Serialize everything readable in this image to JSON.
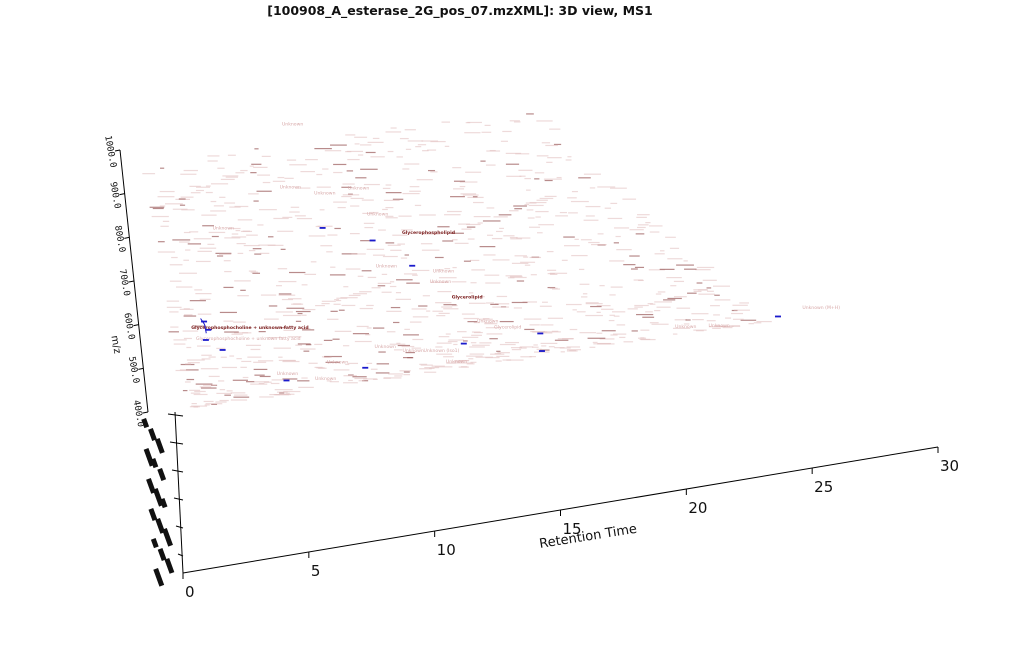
{
  "window": {
    "title": "[100908_A_esterase_2G_pos_07.mzXML]: 3D view, MS1"
  },
  "chart_data": {
    "type": "scatter",
    "projection": "3d",
    "title": "[100908_A_esterase_2G_pos_07.mzXML]: 3D view, MS1",
    "xlabel": "Retention Time",
    "ylabel": "m/z",
    "xlim": [
      0,
      30
    ],
    "ylim": [
      400,
      1000
    ],
    "x_ticks": [
      "0",
      "5",
      "10",
      "15",
      "20",
      "25",
      "30"
    ],
    "y_ticks": [
      "400.0",
      "500.0",
      "600.0",
      "700.0",
      "800.0",
      "900.0",
      "1000.0"
    ],
    "grid": false,
    "colors": {
      "annotation": "#d7a8a8",
      "annotation_highlight": "#7a1c1c",
      "selected_points": "#1a1acc",
      "axis": "#000000"
    },
    "features": [
      {
        "x": 2.0,
        "y": 575,
        "label": "Glycerophosphocholine + unknown fatty acid",
        "highlight": true
      },
      {
        "x": 2.1,
        "y": 548,
        "label": "Glycerophosphocholine + unknown fatty acid",
        "highlight": false
      },
      {
        "x": 12.9,
        "y": 717,
        "label": "Glycerophospholipid",
        "highlight": true
      },
      {
        "x": 13.3,
        "y": 555,
        "label": "Glycerolipid",
        "highlight": true
      },
      {
        "x": 13.7,
        "y": 493,
        "label": "Unknown",
        "highlight": false
      },
      {
        "x": 14.2,
        "y": 474,
        "label": "Glycerolipid",
        "highlight": false
      },
      {
        "x": 11.0,
        "y": 445,
        "label": "Unknown (Iso1)",
        "highlight": false
      },
      {
        "x": 25.9,
        "y": 414,
        "label": "Unknown (M+H)",
        "highlight": false
      },
      {
        "x": 20.8,
        "y": 414,
        "label": "Unknown",
        "highlight": false
      },
      {
        "x": 22.0,
        "y": 405,
        "label": "Unknown",
        "highlight": false
      },
      {
        "x": 5.0,
        "y": 443,
        "label": "Unknown",
        "highlight": false
      },
      {
        "x": 7.1,
        "y": 452,
        "label": "Unknown",
        "highlight": false
      },
      {
        "x": 9.2,
        "y": 470,
        "label": "Unknown",
        "highlight": false
      },
      {
        "x": 10.2,
        "y": 452,
        "label": "Unknown",
        "highlight": false
      },
      {
        "x": 11.6,
        "y": 412,
        "label": "Unknown",
        "highlight": false
      },
      {
        "x": 6.4,
        "y": 418,
        "label": "Unknown",
        "highlight": false
      },
      {
        "x": 8.2,
        "y": 860,
        "label": "Unknown",
        "highlight": false
      },
      {
        "x": 9.8,
        "y": 835,
        "label": "Unknown",
        "highlight": false
      },
      {
        "x": 11.6,
        "y": 835,
        "label": "Unknown",
        "highlight": false
      },
      {
        "x": 9.9,
        "y": 1000,
        "label": "Unknown",
        "highlight": false
      },
      {
        "x": 4.1,
        "y": 790,
        "label": "Unknown",
        "highlight": false
      },
      {
        "x": 11.8,
        "y": 770,
        "label": "Unknown",
        "highlight": false
      },
      {
        "x": 10.9,
        "y": 650,
        "label": "Unknown",
        "highlight": false
      },
      {
        "x": 13.2,
        "y": 620,
        "label": "Unknown",
        "highlight": false
      },
      {
        "x": 12.8,
        "y": 597,
        "label": "Unknown",
        "highlight": false
      }
    ],
    "selected_points": [
      {
        "x": 2.5,
        "y": 590
      },
      {
        "x": 2.6,
        "y": 570
      },
      {
        "x": 2.4,
        "y": 548
      },
      {
        "x": 9.3,
        "y": 760
      },
      {
        "x": 11.3,
        "y": 715
      },
      {
        "x": 12.4,
        "y": 645
      },
      {
        "x": 3.0,
        "y": 520
      },
      {
        "x": 12.6,
        "y": 453
      },
      {
        "x": 15.7,
        "y": 450
      },
      {
        "x": 24.7,
        "y": 408
      },
      {
        "x": 15.3,
        "y": 410
      },
      {
        "x": 5.2,
        "y": 430
      },
      {
        "x": 8.4,
        "y": 432
      }
    ]
  }
}
